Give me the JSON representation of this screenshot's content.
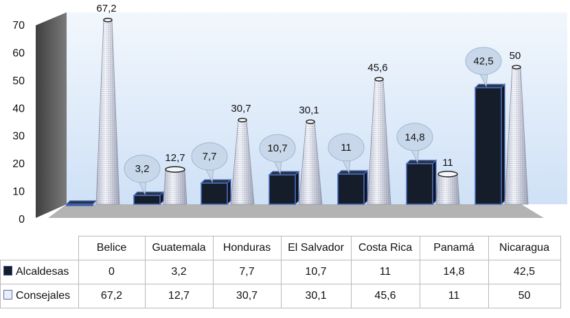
{
  "chart_data": {
    "type": "bar",
    "categories": [
      "Belice",
      "Guatemala",
      "Honduras",
      "El Salvador",
      "Costa Rica",
      "Panamá",
      "Nicaragua"
    ],
    "series": [
      {
        "name": "Alcaldesas",
        "values": [
          0,
          3.2,
          7.7,
          10.7,
          11,
          14.8,
          42.5
        ],
        "labels": [
          "",
          "3,2",
          "7,7",
          "10,7",
          "11",
          "14,8",
          "42,5"
        ]
      },
      {
        "name": "Consejales",
        "values": [
          67.2,
          12.7,
          30.7,
          30.1,
          45.6,
          11,
          50
        ],
        "labels": [
          "67,2",
          "12,7",
          "30,7",
          "30,1",
          "45,6",
          "11",
          "50"
        ]
      }
    ],
    "y_ticks": [
      "0",
      "10",
      "20",
      "30",
      "40",
      "50",
      "60",
      "70"
    ],
    "ylim": [
      0,
      70
    ],
    "title": "",
    "xlabel": "",
    "ylabel": "",
    "legend": "in data table",
    "colors": {
      "alcaldesas": "#151c2a",
      "consejales": "#eef1f7",
      "wall": "#e3eefb",
      "floor": "#b3b3b3",
      "bubble": "#c8d8ea"
    }
  },
  "table": {
    "rows": [
      {
        "label": "Alcaldesas",
        "cells": [
          "0",
          "3,2",
          "7,7",
          "10,7",
          "11",
          "14,8",
          "42,5"
        ]
      },
      {
        "label": "Consejales",
        "cells": [
          "67,2",
          "12,7",
          "30,7",
          "30,1",
          "45,6",
          "11",
          "50"
        ]
      }
    ]
  }
}
